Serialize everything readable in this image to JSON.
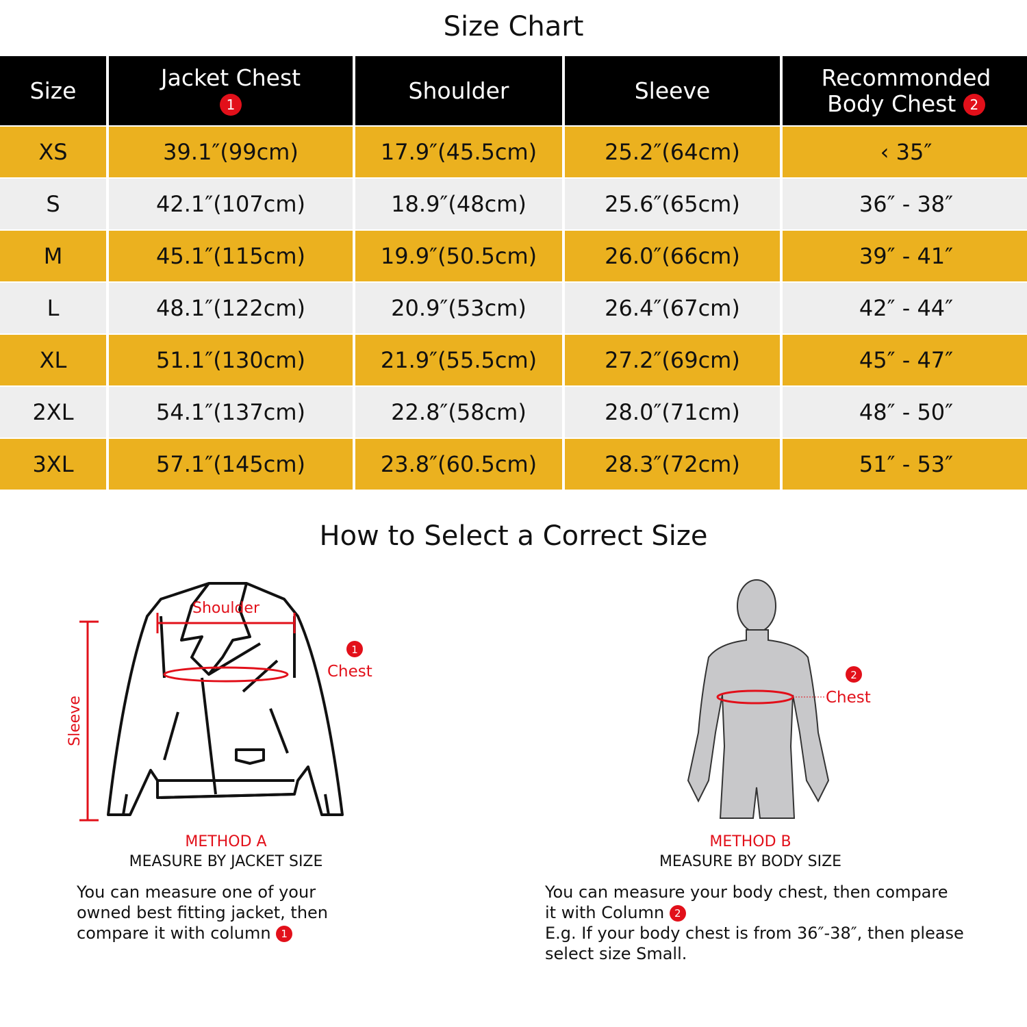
{
  "title": "Size Chart",
  "table": {
    "headers": [
      {
        "label": "Size",
        "badge": ""
      },
      {
        "label": "Jacket Chest",
        "badge": "1"
      },
      {
        "label": "Shoulder",
        "badge": ""
      },
      {
        "label": "Sleeve",
        "badge": ""
      },
      {
        "label": "Recommonded Body  Chest",
        "badge": "2"
      }
    ],
    "rows": [
      [
        "XS",
        "39.1″(99cm)",
        "17.9″(45.5cm)",
        "25.2″(64cm)",
        "‹ 35″"
      ],
      [
        "S",
        "42.1″(107cm)",
        "18.9″(48cm)",
        "25.6″(65cm)",
        "36″ - 38″"
      ],
      [
        "M",
        "45.1″(115cm)",
        "19.9″(50.5cm)",
        "26.0″(66cm)",
        "39″ - 41″"
      ],
      [
        "L",
        "48.1″(122cm)",
        "20.9″(53cm)",
        "26.4″(67cm)",
        "42″ - 44″"
      ],
      [
        "XL",
        "51.1″(130cm)",
        "21.9″(55.5cm)",
        "27.2″(69cm)",
        "45″ - 47″"
      ],
      [
        "2XL",
        "54.1″(137cm)",
        "22.8″(58cm)",
        "28.0″(71cm)",
        "48″ - 50″"
      ],
      [
        "3XL",
        "57.1″(145cm)",
        "23.8″(60.5cm)",
        "28.3″(72cm)",
        "51″ - 53″"
      ]
    ]
  },
  "guide_title": "How to Select a Correct Size",
  "colors": {
    "header": "#000000",
    "row_odd": "#EBB11F",
    "row_even": "#EEEEEE",
    "accent": "#E2101A"
  },
  "method_a": {
    "label": "METHOD A",
    "subtitle": "MEASURE BY JACKET SIZE",
    "diagram": {
      "shoulder": "Shoulder",
      "chest": "Chest",
      "sleeve": "Sleeve",
      "badge": "1"
    },
    "lines": [
      "You can measure one of your",
      "owned best fitting jacket, then",
      "compare it with column"
    ],
    "badge": "1"
  },
  "method_b": {
    "label": "METHOD B",
    "subtitle": "MEASURE BY BODY SIZE",
    "diagram": {
      "chest": "Chest",
      "badge": "2"
    },
    "lines": [
      "You can measure your body chest, then compare",
      "it with Column",
      "E.g. If your body chest is from 36″-38″, then please",
      "select size Small."
    ],
    "badge": "2"
  }
}
